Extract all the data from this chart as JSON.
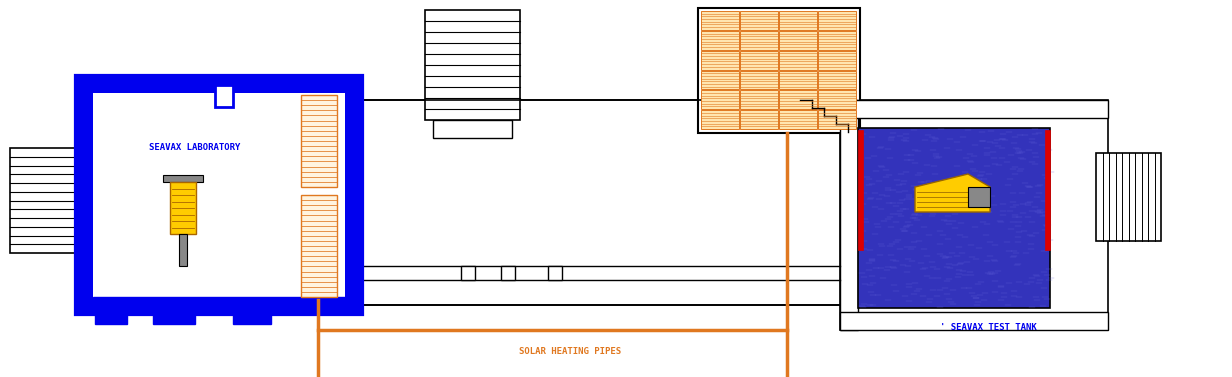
{
  "fig_width": 12.32,
  "fig_height": 3.77,
  "dpi": 100,
  "bg": "#ffffff",
  "blue": "#0000ee",
  "orange": "#e07820",
  "red": "#dd0000",
  "yellow": "#ffcc00",
  "gray": "#888888",
  "black": "#000000",
  "tank_blue": "#3333bb",
  "lab_label": "SEAVAX LABORATORY",
  "tank_label": "' SEAVAX TEST TANK",
  "pipe_label": "SOLAR HEATING PIPES"
}
